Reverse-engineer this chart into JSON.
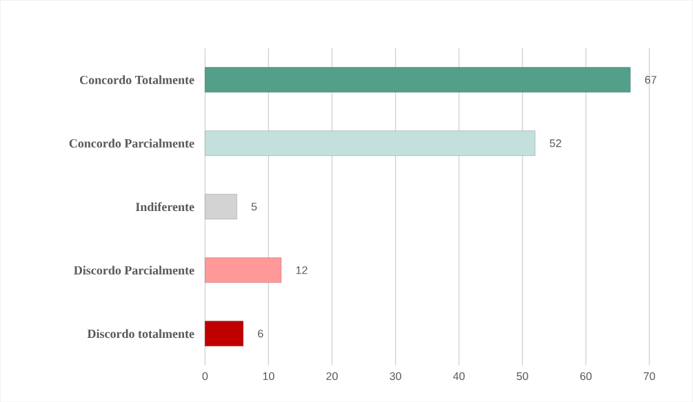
{
  "chart_data": {
    "type": "bar",
    "orientation": "horizontal",
    "categories": [
      "Concordo Totalmente",
      "Concordo Parcialmente",
      "Indiferente",
      "Discordo Parcialmente",
      "Discordo totalmente"
    ],
    "values": [
      67,
      52,
      5,
      12,
      6
    ],
    "colors": [
      "#52a08a",
      "#c3e0dc",
      "#d3d3d3",
      "#ff9999",
      "#c00000"
    ],
    "xlim": [
      0,
      70
    ],
    "xticks": [
      0,
      10,
      20,
      30,
      40,
      50,
      60,
      70
    ],
    "grid": "x",
    "data_labels": true
  }
}
